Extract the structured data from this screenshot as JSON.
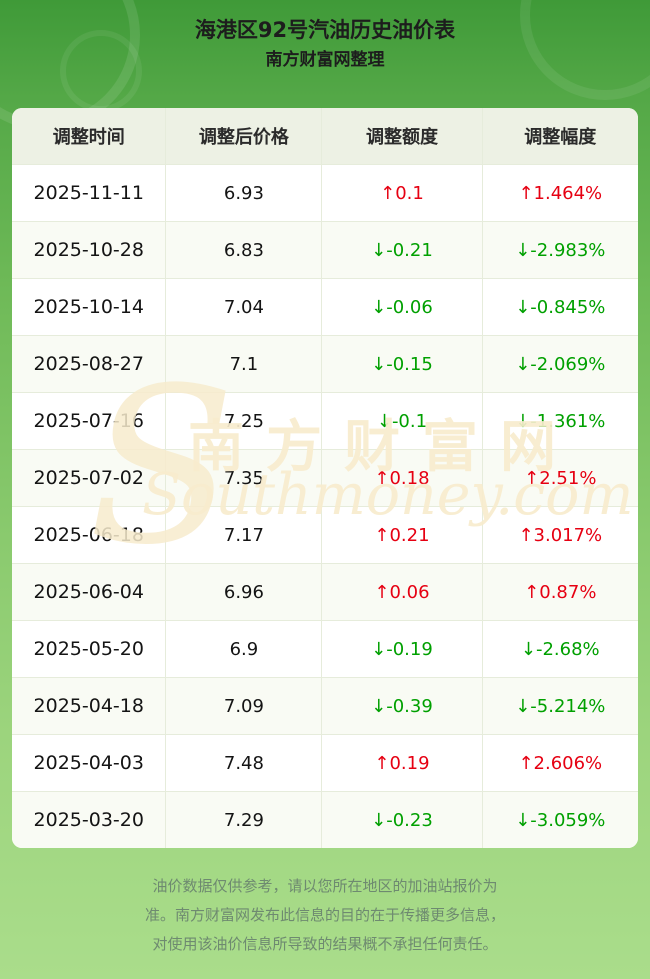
{
  "header": {
    "title": "海港区92号汽油历史油价表",
    "subtitle": "南方财富网整理"
  },
  "chart_data": {
    "type": "table",
    "title": "海港区92号汽油历史油价表",
    "columns": [
      "调整时间",
      "调整后价格",
      "调整额度",
      "调整幅度"
    ],
    "rows": [
      {
        "date": "2025-11-11",
        "price": "6.93",
        "change": "↑0.1",
        "pct": "↑1.464%",
        "direction": "up"
      },
      {
        "date": "2025-10-28",
        "price": "6.83",
        "change": "↓-0.21",
        "pct": "↓-2.983%",
        "direction": "down"
      },
      {
        "date": "2025-10-14",
        "price": "7.04",
        "change": "↓-0.06",
        "pct": "↓-0.845%",
        "direction": "down"
      },
      {
        "date": "2025-08-27",
        "price": "7.1",
        "change": "↓-0.15",
        "pct": "↓-2.069%",
        "direction": "down"
      },
      {
        "date": "2025-07-16",
        "price": "7.25",
        "change": "↓-0.1",
        "pct": "↓-1.361%",
        "direction": "down"
      },
      {
        "date": "2025-07-02",
        "price": "7.35",
        "change": "↑0.18",
        "pct": "↑2.51%",
        "direction": "up"
      },
      {
        "date": "2025-06-18",
        "price": "7.17",
        "change": "↑0.21",
        "pct": "↑3.017%",
        "direction": "up"
      },
      {
        "date": "2025-06-04",
        "price": "6.96",
        "change": "↑0.06",
        "pct": "↑0.87%",
        "direction": "up"
      },
      {
        "date": "2025-05-20",
        "price": "6.9",
        "change": "↓-0.19",
        "pct": "↓-2.68%",
        "direction": "down"
      },
      {
        "date": "2025-04-18",
        "price": "7.09",
        "change": "↓-0.39",
        "pct": "↓-5.214%",
        "direction": "down"
      },
      {
        "date": "2025-04-03",
        "price": "7.48",
        "change": "↑0.19",
        "pct": "↑2.606%",
        "direction": "up"
      },
      {
        "date": "2025-03-20",
        "price": "7.29",
        "change": "↓-0.23",
        "pct": "↓-3.059%",
        "direction": "down"
      }
    ]
  },
  "watermark": {
    "s": "S",
    "cn": "南方财富网",
    "en": "Southmoney.com"
  },
  "footer": {
    "lines": [
      "油价数据仅供参考，请以您所在地区的加油站报价为",
      "准。南方财富网发布此信息的目的在于传播更多信息，",
      "对使用该油价信息所导致的结果概不承担任何责任。"
    ]
  },
  "colors": {
    "increase": "#e60012",
    "decrease": "#00a000",
    "header_background_top": "#3f9a38",
    "header_background_bottom": "#aadd8b",
    "table_header_bg": "#edf1e4"
  }
}
